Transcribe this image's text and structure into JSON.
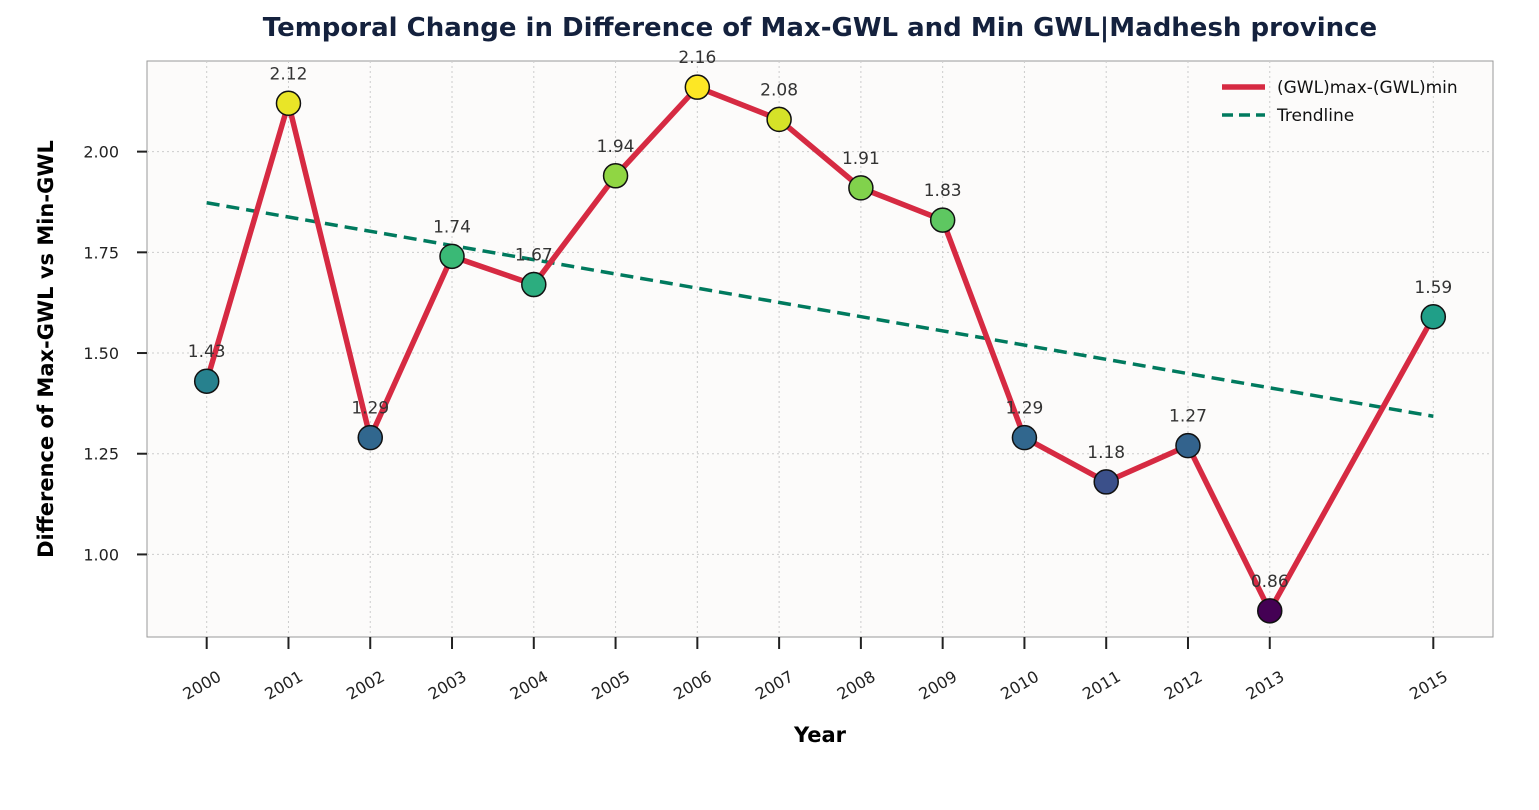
{
  "chart_data": {
    "type": "line",
    "title": "Temporal Change in Difference of Max-GWL and Min GWL|Madhesh province",
    "xlabel": "Year",
    "ylabel": "Difference of Max-GWL vs Min-GWL",
    "x": [
      2000,
      2001,
      2002,
      2003,
      2004,
      2005,
      2006,
      2007,
      2008,
      2009,
      2010,
      2011,
      2012,
      2013,
      2015
    ],
    "x_tick_labels": [
      "2000",
      "2001",
      "2002",
      "2003",
      "2004",
      "2005",
      "2006",
      "2007",
      "2008",
      "2009",
      "2010",
      "2011",
      "2012",
      "2013",
      "2015"
    ],
    "y_ticks": [
      1.0,
      1.25,
      1.5,
      1.75,
      2.0
    ],
    "y_tick_labels": [
      "1.00",
      "1.25",
      "1.50",
      "1.75",
      "2.00"
    ],
    "xlim": [
      1999.27,
      2015.73
    ],
    "ylim": [
      0.795,
      2.225
    ],
    "grid": true,
    "legend_position": "top-right",
    "series": [
      {
        "name": "(GWL)max-(GWL)min",
        "style": "solid",
        "color": "#d62a42",
        "values": [
          1.43,
          2.12,
          1.29,
          1.74,
          1.67,
          1.94,
          2.16,
          2.08,
          1.91,
          1.83,
          1.29,
          1.18,
          1.27,
          0.86,
          1.59
        ],
        "data_labels": [
          "1.43",
          "2.12",
          "1.29",
          "1.74",
          "1.67",
          "1.94",
          "2.16",
          "2.08",
          "1.91",
          "1.83",
          "1.29",
          "1.18",
          "1.27",
          "0.86",
          "1.59"
        ],
        "marker_colormap": "viridis"
      },
      {
        "name": "Trendline",
        "style": "dashed",
        "color": "#007a5e",
        "x": [
          2000,
          2015
        ],
        "values": [
          1.873,
          1.343
        ]
      }
    ]
  }
}
